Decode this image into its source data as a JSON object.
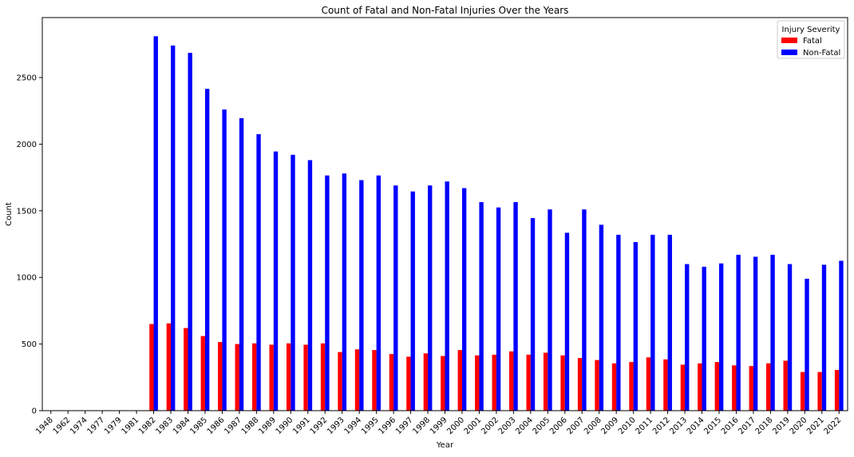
{
  "chart_data": {
    "type": "bar",
    "title": "Count of Fatal and Non-Fatal Injuries Over the Years",
    "xlabel": "Year",
    "ylabel": "Count",
    "ylim": [
      0,
      2950
    ],
    "yticks": [
      0,
      500,
      1000,
      1500,
      2000,
      2500
    ],
    "grid": false,
    "legend": {
      "title": "Injury Severity",
      "placement": "top-right"
    },
    "categories": [
      "1948",
      "1962",
      "1974",
      "1977",
      "1979",
      "1981",
      "1982",
      "1983",
      "1984",
      "1985",
      "1986",
      "1987",
      "1988",
      "1989",
      "1990",
      "1991",
      "1992",
      "1993",
      "1994",
      "1995",
      "1996",
      "1997",
      "1998",
      "1999",
      "2000",
      "2001",
      "2002",
      "2003",
      "2004",
      "2005",
      "2006",
      "2007",
      "2008",
      "2009",
      "2010",
      "2011",
      "2012",
      "2013",
      "2014",
      "2015",
      "2016",
      "2017",
      "2018",
      "2019",
      "2020",
      "2021",
      "2022"
    ],
    "series": [
      {
        "name": "Fatal",
        "color": "#ff0000",
        "values": [
          1,
          1,
          1,
          1,
          1,
          1,
          650,
          655,
          620,
          560,
          515,
          500,
          505,
          495,
          505,
          495,
          505,
          440,
          460,
          455,
          425,
          405,
          430,
          410,
          455,
          415,
          420,
          445,
          420,
          435,
          415,
          395,
          380,
          355,
          365,
          400,
          385,
          345,
          355,
          365,
          340,
          335,
          355,
          375,
          290,
          290,
          305
        ]
      },
      {
        "name": "Non-Fatal",
        "color": "#0000ff",
        "values": [
          0,
          0,
          0,
          0,
          0,
          0,
          2810,
          2740,
          2685,
          2415,
          2260,
          2195,
          2075,
          1945,
          1920,
          1880,
          1765,
          1780,
          1730,
          1765,
          1690,
          1645,
          1690,
          1720,
          1670,
          1565,
          1525,
          1565,
          1445,
          1510,
          1335,
          1510,
          1395,
          1320,
          1265,
          1320,
          1320,
          1100,
          1080,
          1105,
          1170,
          1155,
          1170,
          1100,
          990,
          1095,
          1125
        ]
      }
    ]
  }
}
